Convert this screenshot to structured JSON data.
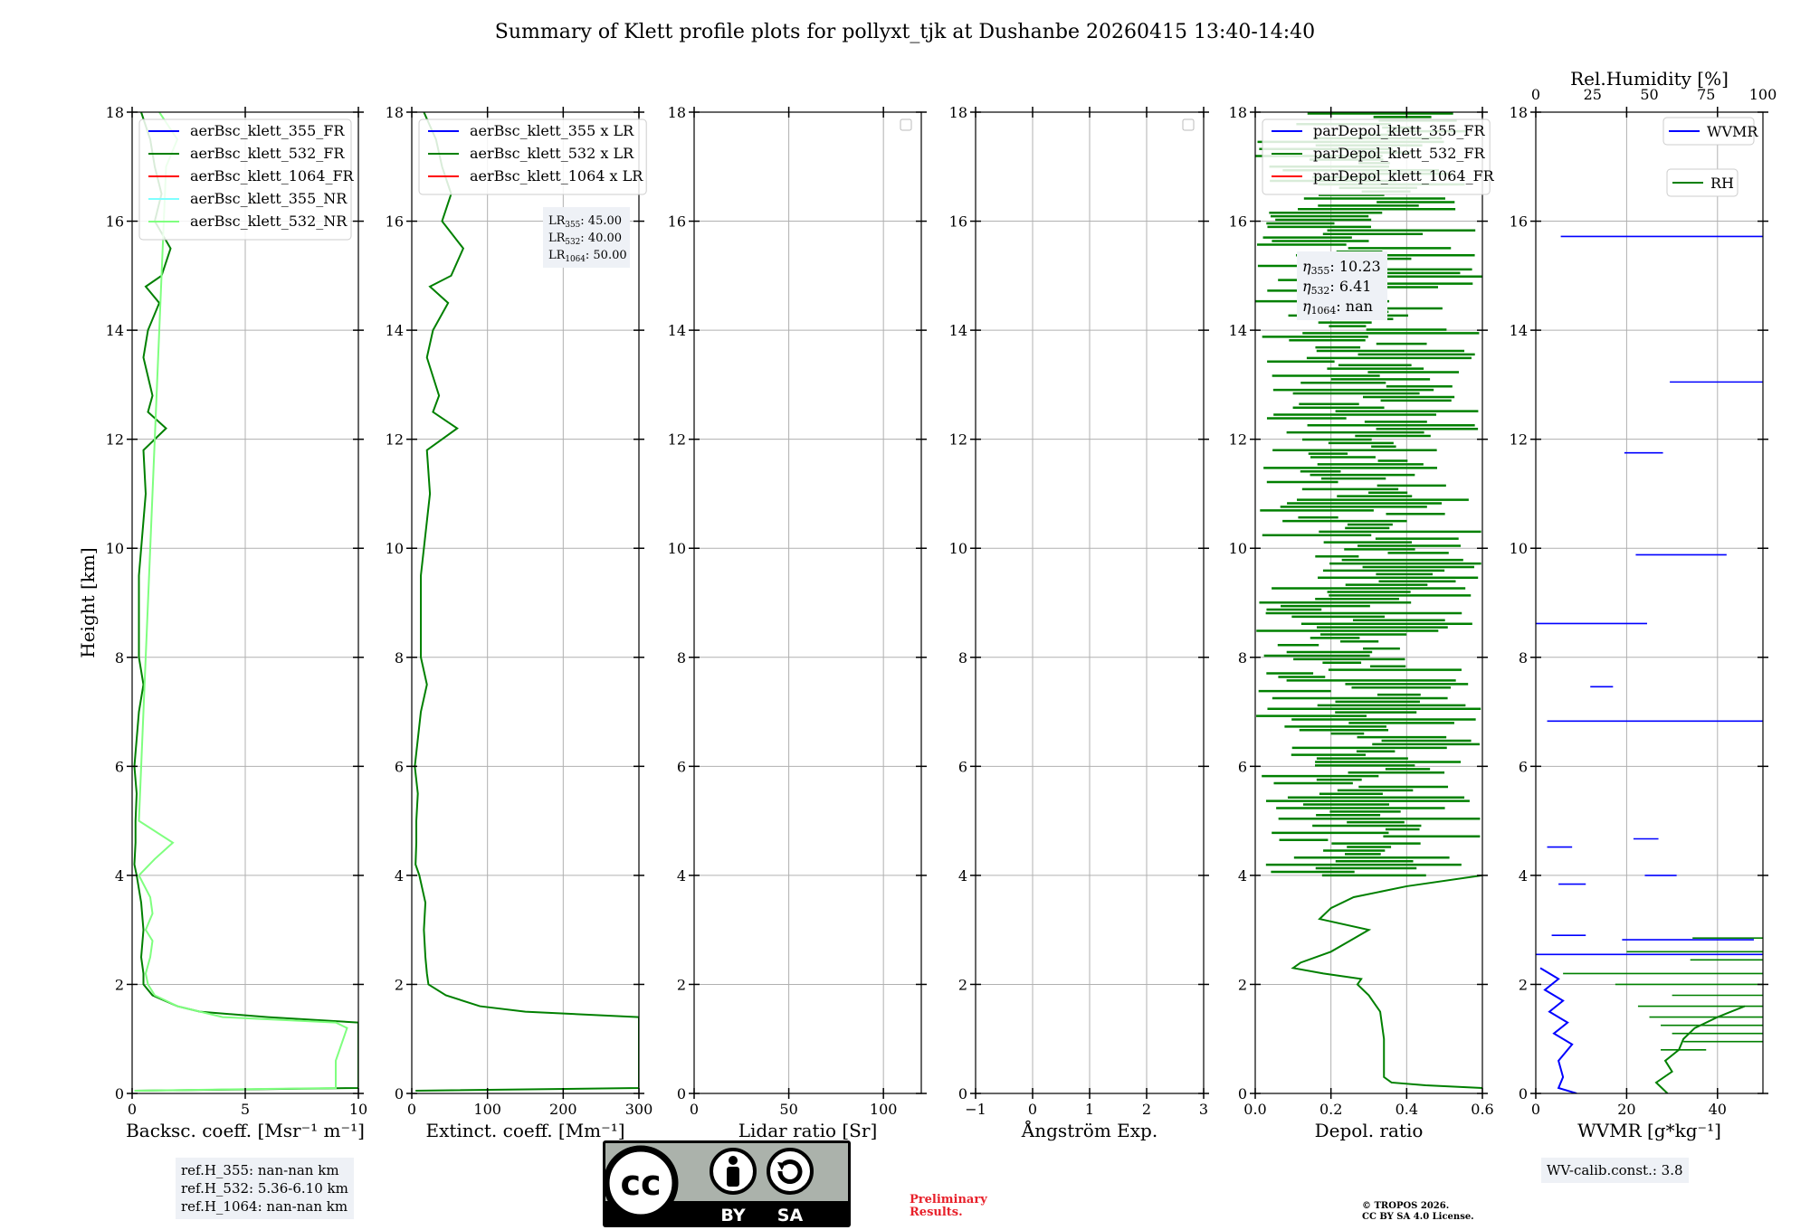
{
  "figure": {
    "title": "Summary of Klett profile plots for pollyxt_tjk at Dushanbe 20260415 13:40-14:40"
  },
  "ref_box": {
    "lines": [
      "ref.H_355: nan-nan km",
      "ref.H_532: 5.36-6.10 km",
      "ref.H_1064: nan-nan km"
    ]
  },
  "license": {
    "cc": "cc",
    "by": "BY",
    "sa": "SA"
  },
  "preliminary": [
    "Preliminary",
    "Results."
  ],
  "copyright": [
    "© TROPOS 2026.",
    "CC BY SA 4.0 License."
  ],
  "wv_calib": "WV-calib.const.: 3.8",
  "colors": {
    "blue": "#0000ff",
    "green": "#008000",
    "red": "#ff0000",
    "cyan": "#7fffff",
    "lightgreen": "#7fff7f",
    "textbox": "#eef1f6",
    "preliminary_red": "#e8202a"
  },
  "chart_data": [
    {
      "id": "bsc",
      "type": "line",
      "xlabel": "Backsc. coeff. [Msr⁻¹ m⁻¹]",
      "ylabel": "Height [km]",
      "xlim": [
        0,
        10
      ],
      "ylim": [
        0,
        18
      ],
      "xticks": [
        0,
        5,
        10
      ],
      "xtick_labels": [
        "0",
        "5",
        "10"
      ],
      "yticks": [
        0,
        2,
        4,
        6,
        8,
        10,
        12,
        14,
        16,
        18
      ],
      "legend": [
        "aerBsc_klett_355_FR",
        "aerBsc_klett_532_FR",
        "aerBsc_klett_1064_FR",
        "aerBsc_klett_355_NR",
        "aerBsc_klett_532_NR"
      ],
      "legend_colors": [
        "#0000ff",
        "#008000",
        "#ff0000",
        "#7fffff",
        "#7fff7f"
      ],
      "series": [
        {
          "name": "aerBsc_klett_532_FR",
          "color": "#008000",
          "h": [
            0.05,
            0.1,
            0.5,
            1.0,
            1.3,
            1.4,
            1.5,
            1.6,
            1.8,
            2.0,
            2.2,
            2.5,
            3.0,
            3.5,
            4.0,
            4.2,
            4.6,
            5.0,
            5.5,
            6.0,
            7.0,
            7.5,
            8.0,
            9.5,
            10.5,
            11.0,
            11.8,
            12.2,
            12.5,
            12.8,
            13.5,
            14.0,
            14.5,
            14.8,
            15.0,
            15.5,
            16.0,
            16.5,
            17.0,
            17.5,
            18.0
          ],
          "v": [
            0.1,
            10.0,
            10.0,
            10.0,
            10.0,
            6.0,
            3.0,
            2.0,
            0.9,
            0.5,
            0.5,
            0.4,
            0.5,
            0.4,
            0.2,
            0.1,
            0.15,
            0.15,
            0.2,
            0.1,
            0.3,
            0.5,
            0.3,
            0.3,
            0.5,
            0.6,
            0.5,
            1.5,
            0.7,
            0.9,
            0.5,
            0.7,
            1.2,
            0.6,
            1.3,
            1.7,
            1.0,
            1.3,
            1.0,
            0.8,
            0.4
          ]
        },
        {
          "name": "aerBsc_klett_532_NR",
          "color": "#7fff7f",
          "h": [
            0.05,
            0.1,
            0.6,
            1.2,
            1.3,
            1.4,
            1.6,
            1.8,
            2.0,
            2.2,
            2.5,
            2.8,
            3.0,
            3.3,
            3.6,
            4.0,
            4.3,
            4.6,
            5.0,
            17.0,
            17.5,
            18.0
          ],
          "v": [
            0.1,
            9.0,
            9.0,
            9.5,
            9.0,
            4.0,
            2.0,
            1.0,
            0.7,
            0.6,
            0.8,
            0.9,
            0.6,
            0.9,
            0.8,
            0.3,
            1.0,
            1.8,
            0.3,
            1.5,
            2.0,
            1.2
          ]
        }
      ]
    },
    {
      "id": "ext",
      "type": "line",
      "xlabel": "Extinct. coeff. [Mm⁻¹]",
      "xlim": [
        0,
        300
      ],
      "ylim": [
        0,
        18
      ],
      "xticks": [
        0,
        100,
        200,
        300
      ],
      "xtick_labels": [
        "0",
        "100",
        "200",
        "300"
      ],
      "yticks": [
        0,
        2,
        4,
        6,
        8,
        10,
        12,
        14,
        16,
        18
      ],
      "legend": [
        "aerBsc_klett_355 x LR",
        "aerBsc_klett_532 x LR",
        "aerBsc_klett_1064 x LR"
      ],
      "legend_colors": [
        "#0000ff",
        "#008000",
        "#ff0000"
      ],
      "lr_text": [
        {
          "sym": "LR",
          "sub": "355",
          "val": ": 45.00"
        },
        {
          "sym": "LR",
          "sub": "532",
          "val": ": 40.00"
        },
        {
          "sym": "LR",
          "sub": "1064",
          "val": ": 50.00"
        }
      ],
      "series": [
        {
          "name": "aerBsc_klett_532 x LR",
          "color": "#008000",
          "h": [
            0.05,
            0.1,
            0.5,
            1.0,
            1.4,
            1.5,
            1.6,
            1.8,
            2.0,
            2.2,
            2.5,
            3.0,
            3.5,
            4.0,
            4.2,
            4.6,
            5.0,
            5.5,
            6.0,
            7.0,
            7.5,
            8.0,
            9.5,
            10.5,
            11.0,
            11.8,
            12.2,
            12.5,
            12.8,
            13.5,
            14.0,
            14.5,
            14.8,
            15.0,
            15.5,
            16.0,
            16.5,
            17.0,
            17.5,
            18.0
          ],
          "v": [
            5,
            300,
            300,
            300,
            300,
            150,
            90,
            45,
            22,
            20,
            18,
            16,
            18,
            10,
            5,
            6,
            6,
            8,
            4,
            12,
            20,
            12,
            12,
            20,
            24,
            20,
            60,
            28,
            36,
            20,
            28,
            48,
            24,
            52,
            68,
            40,
            52,
            40,
            32,
            16
          ]
        }
      ]
    },
    {
      "id": "lr",
      "type": "line",
      "xlabel": "Lidar ratio [Sr]",
      "xlim": [
        0,
        120
      ],
      "ylim": [
        0,
        18
      ],
      "xticks": [
        0,
        50,
        100
      ],
      "xtick_labels": [
        "0",
        "50",
        "100"
      ],
      "yticks": [
        0,
        2,
        4,
        6,
        8,
        10,
        12,
        14,
        16,
        18
      ],
      "legend": [],
      "series": []
    },
    {
      "id": "ang",
      "type": "line",
      "xlabel": "Ångström Exp.",
      "xlim": [
        -1,
        3
      ],
      "ylim": [
        0,
        18
      ],
      "xticks": [
        -1,
        0,
        1,
        2,
        3
      ],
      "xtick_labels": [
        "−1",
        "0",
        "1",
        "2",
        "3"
      ],
      "yticks": [
        0,
        2,
        4,
        6,
        8,
        10,
        12,
        14,
        16,
        18
      ],
      "legend": [],
      "series": []
    },
    {
      "id": "depol",
      "type": "line",
      "xlabel": "Depol. ratio",
      "xlim": [
        0,
        0.6
      ],
      "ylim": [
        0,
        18
      ],
      "xticks": [
        0,
        0.2,
        0.4,
        0.6
      ],
      "xtick_labels": [
        "0.0",
        "0.2",
        "0.4",
        "0.6"
      ],
      "yticks": [
        0,
        2,
        4,
        6,
        8,
        10,
        12,
        14,
        16,
        18
      ],
      "legend": [
        "parDepol_klett_355_FR",
        "parDepol_klett_532_FR",
        "parDepol_klett_1064_FR"
      ],
      "legend_colors": [
        "#0000ff",
        "#008000",
        "#ff0000"
      ],
      "eta_text": [
        {
          "sym": "η",
          "sub": "355",
          "val": ": 10.23"
        },
        {
          "sym": "η",
          "sub": "532",
          "val": ": 6.41"
        },
        {
          "sym": "η",
          "sub": "1064",
          "val": ": nan"
        }
      ],
      "series": [
        {
          "name": "parDepol_klett_532_FR",
          "color": "#008000",
          "h": [
            0.1,
            0.15,
            0.2,
            0.3,
            0.5,
            1.0,
            1.5,
            1.8,
            2.0,
            2.1,
            2.2,
            2.3,
            2.4,
            2.6,
            2.8,
            3.0,
            3.2,
            3.4,
            3.6,
            3.8,
            4.0
          ],
          "v": [
            0.6,
            0.45,
            0.36,
            0.34,
            0.34,
            0.34,
            0.33,
            0.3,
            0.27,
            0.28,
            0.18,
            0.1,
            0.12,
            0.2,
            0.25,
            0.3,
            0.17,
            0.2,
            0.26,
            0.4,
            0.6
          ]
        }
      ],
      "noise_band": {
        "from_km": 4.0,
        "to_km": 18.0,
        "value_range": [
          0.0,
          0.6
        ]
      }
    },
    {
      "id": "wv",
      "type": "line",
      "xlabel": "WVMR [g*kg⁻¹]",
      "xlim": [
        0,
        50
      ],
      "ylim": [
        0,
        18
      ],
      "xticks": [
        0,
        20,
        40
      ],
      "xtick_labels": [
        "0",
        "20",
        "40"
      ],
      "yticks": [
        0,
        2,
        4,
        6,
        8,
        10,
        12,
        14,
        16,
        18
      ],
      "top_axis": {
        "label": "Rel.Humidity [%]",
        "lim": [
          0,
          100
        ],
        "ticks": [
          0,
          25,
          50,
          75,
          100
        ],
        "tick_labels": [
          "0",
          "25",
          "50",
          "75",
          "100"
        ]
      },
      "legend": [
        "WVMR",
        "RH"
      ],
      "legend_colors": [
        "#0000ff",
        "#008000"
      ],
      "wvmr_segments": [
        {
          "h": 15.72,
          "x0": 5.5,
          "x1": 50
        },
        {
          "h": 13.05,
          "x0": 29.5,
          "x1": 50
        },
        {
          "h": 11.75,
          "x0": 19.5,
          "x1": 28
        },
        {
          "h": 9.88,
          "x0": 22,
          "x1": 42
        },
        {
          "h": 8.62,
          "x0": 0,
          "x1": 24.5
        },
        {
          "h": 7.46,
          "x0": 12,
          "x1": 17
        },
        {
          "h": 6.83,
          "x0": 2.5,
          "x1": 50
        },
        {
          "h": 4.67,
          "x0": 21.5,
          "x1": 27
        },
        {
          "h": 4.52,
          "x0": 2.5,
          "x1": 8
        },
        {
          "h": 4.0,
          "x0": 24,
          "x1": 31
        },
        {
          "h": 3.84,
          "x0": 5,
          "x1": 11
        },
        {
          "h": 2.9,
          "x0": 3.5,
          "x1": 11
        },
        {
          "h": 2.82,
          "x0": 19,
          "x1": 48
        },
        {
          "h": 2.55,
          "x0": 0,
          "x1": 50
        }
      ],
      "wvmr_profile": {
        "h": [
          0.0,
          0.1,
          0.3,
          0.6,
          0.9,
          1.1,
          1.3,
          1.5,
          1.7,
          1.9,
          2.1,
          2.3
        ],
        "v": [
          9,
          5,
          6,
          5,
          8,
          4,
          7,
          3,
          6,
          2,
          5,
          1
        ]
      },
      "rh_segments": [
        {
          "h": 2.85,
          "x0": 69,
          "x1": 100
        },
        {
          "h": 2.6,
          "x0": 40,
          "x1": 100
        },
        {
          "h": 2.45,
          "x0": 68,
          "x1": 100
        },
        {
          "h": 2.2,
          "x0": 12,
          "x1": 100
        },
        {
          "h": 2.0,
          "x0": 35,
          "x1": 100
        },
        {
          "h": 1.8,
          "x0": 60,
          "x1": 100
        },
        {
          "h": 1.6,
          "x0": 45,
          "x1": 100
        },
        {
          "h": 1.4,
          "x0": 50,
          "x1": 100
        },
        {
          "h": 1.25,
          "x0": 55,
          "x1": 100
        },
        {
          "h": 1.1,
          "x0": 60,
          "x1": 100
        },
        {
          "h": 0.95,
          "x0": 65,
          "x1": 100
        },
        {
          "h": 0.8,
          "x0": 55,
          "x1": 75
        }
      ],
      "rh_profile": {
        "h": [
          0.0,
          0.2,
          0.4,
          0.6,
          0.8,
          1.0,
          1.2,
          1.4,
          1.6
        ],
        "v": [
          58,
          53,
          60,
          57,
          63,
          65,
          70,
          80,
          92
        ]
      }
    }
  ]
}
